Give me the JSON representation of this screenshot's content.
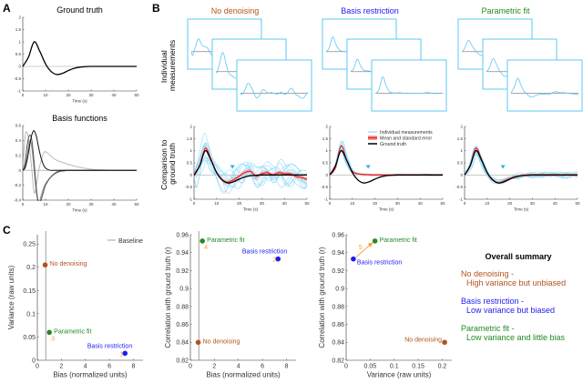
{
  "panel_labels": [
    "A",
    "B",
    "C"
  ],
  "row_labels": {
    "individual": [
      "Individual",
      "measurements"
    ],
    "comparison": [
      "Comparison to",
      "ground truth"
    ]
  },
  "colors": {
    "no_denoising": "#b4531e",
    "basis_restriction": "#1c1cf0",
    "parametric_fit": "#238a23",
    "order": "#f5a236",
    "measurement": "#5cc8f5",
    "mean": "#ee1c1c",
    "ground_truth": "#000000",
    "baseline": "#888888"
  },
  "legend": [
    "Individual measurements",
    "Mean and standard error",
    "Ground truth"
  ],
  "chart_data": [
    {
      "type": "line",
      "title": "Ground truth",
      "xlabel": "Time (s)",
      "ylabel": "",
      "xlim": [
        0,
        50
      ],
      "ylim": [
        -1,
        2
      ],
      "xticks": [
        0,
        10,
        20,
        30,
        40,
        50
      ],
      "yticks": [
        -1,
        -0.5,
        0,
        0.5,
        1,
        1.5,
        2
      ],
      "x": [
        0,
        2.5,
        5,
        7.5,
        10,
        12.5,
        15,
        17.5,
        20,
        22.5,
        25,
        27.5,
        30,
        32.5,
        35,
        37.5,
        40,
        42.5,
        45,
        47.5,
        50
      ],
      "series": [
        {
          "values": [
            0,
            0.38,
            1,
            0.61,
            0.1,
            -0.21,
            -0.33,
            -0.28,
            -0.17,
            -0.08,
            -0.03,
            -0.01,
            0,
            0,
            0,
            0,
            0,
            0,
            0,
            0,
            0
          ]
        }
      ]
    },
    {
      "type": "line",
      "title": "Basis functions",
      "xlabel": "Time (s)",
      "ylabel": "",
      "xlim": [
        0,
        50
      ],
      "ylim": [
        -0.4,
        0.6
      ],
      "xticks": [
        0,
        10,
        20,
        30,
        40,
        50
      ],
      "yticks": [
        -0.4,
        -0.2,
        0,
        0.2,
        0.4,
        0.6
      ],
      "x": [
        0,
        1,
        2,
        3,
        4,
        5,
        6,
        7,
        8,
        9,
        10,
        12,
        14,
        16,
        18,
        20,
        25,
        30,
        35,
        40,
        45,
        50
      ],
      "series": [
        {
          "color": "#bbbbbb",
          "values": [
            0,
            0.45,
            0.5,
            0.3,
            0,
            -0.3,
            -0.2,
            0,
            0.12,
            0.22,
            0.25,
            0.2,
            0.15,
            0.12,
            0.1,
            0.08,
            0.04,
            0.015,
            0.005,
            0,
            0,
            0
          ]
        },
        {
          "color": "#888888",
          "values": [
            0,
            0.05,
            0.2,
            0.4,
            0.3,
            0,
            -0.3,
            -0.45,
            -0.35,
            -0.25,
            -0.18,
            -0.1,
            -0.05,
            -0.02,
            -0.01,
            0,
            0,
            0,
            0,
            0,
            0,
            0
          ]
        },
        {
          "color": "#555555",
          "values": [
            0,
            0.1,
            0.35,
            0.47,
            0.4,
            0.1,
            -0.25,
            -0.45,
            -0.4,
            -0.3,
            -0.2,
            -0.1,
            -0.04,
            -0.01,
            0,
            0,
            0,
            0,
            0,
            0,
            0,
            0
          ]
        },
        {
          "color": "#111111",
          "values": [
            0,
            0.03,
            0.15,
            0.33,
            0.48,
            0.53,
            0.45,
            0.3,
            0.17,
            0.08,
            0.03,
            0,
            0,
            0,
            0,
            0,
            0,
            0,
            0,
            0,
            0,
            0
          ]
        }
      ]
    },
    {
      "type": "line",
      "title": "No denoising",
      "xlabel": "Time (s)",
      "ylabel": "Comparison to ground truth",
      "xlim": [
        0,
        50
      ],
      "ylim": [
        -1,
        2
      ],
      "xticks": [
        0,
        10,
        20,
        30,
        40,
        50
      ],
      "yticks": [
        -1,
        -0.5,
        0,
        0.5,
        1,
        1.5,
        2
      ],
      "x": [
        0,
        2.5,
        5,
        7.5,
        10,
        12.5,
        15,
        17.5,
        20,
        22.5,
        25,
        27.5,
        30,
        32.5,
        35,
        37.5,
        40,
        42.5,
        45,
        47.5,
        50
      ],
      "series": [
        {
          "name": "Mean and standard error",
          "values": [
            -0.05,
            0.4,
            1.1,
            0.65,
            0.1,
            -0.2,
            -0.3,
            -0.2,
            -0.05,
            0.1,
            0.15,
            -0.05,
            0.05,
            0.1,
            0.0,
            0.1,
            0.05,
            0.05,
            -0.05,
            -0.1,
            -0.18
          ]
        },
        {
          "name": "Ground truth",
          "values": [
            0,
            0.38,
            1,
            0.61,
            0.1,
            -0.21,
            -0.33,
            -0.28,
            -0.17,
            -0.08,
            -0.03,
            -0.01,
            0,
            0,
            0,
            0,
            0,
            0,
            0,
            0,
            0
          ]
        }
      ]
    },
    {
      "type": "line",
      "title": "Basis restriction",
      "xlabel": "Time (s)",
      "ylabel": "",
      "xlim": [
        0,
        50
      ],
      "ylim": [
        -1,
        2
      ],
      "xticks": [
        0,
        10,
        20,
        30,
        40,
        50
      ],
      "yticks": [
        -1,
        -0.5,
        0,
        0.5,
        1,
        1.5,
        2
      ],
      "x": [
        0,
        2.5,
        5,
        7.5,
        10,
        12.5,
        15,
        17.5,
        20,
        22.5,
        25,
        27.5,
        30,
        32.5,
        35,
        37.5,
        40,
        42.5,
        45,
        47.5,
        50
      ],
      "series": [
        {
          "name": "Mean and standard error",
          "values": [
            0,
            0.3,
            1.2,
            0.6,
            0.15,
            0.05,
            0.02,
            0.01,
            0,
            0,
            0,
            0,
            0,
            0,
            0,
            0,
            0,
            0,
            0,
            0,
            0
          ]
        },
        {
          "name": "Ground truth",
          "values": [
            0,
            0.38,
            1,
            0.61,
            0.1,
            -0.21,
            -0.33,
            -0.28,
            -0.17,
            -0.08,
            -0.03,
            -0.01,
            0,
            0,
            0,
            0,
            0,
            0,
            0,
            0,
            0
          ]
        }
      ]
    },
    {
      "type": "line",
      "title": "Parametric fit",
      "xlabel": "Time (s)",
      "ylabel": "",
      "xlim": [
        0,
        50
      ],
      "ylim": [
        -1,
        2
      ],
      "xticks": [
        0,
        10,
        20,
        30,
        40,
        50
      ],
      "yticks": [
        -1,
        -0.5,
        0,
        0.5,
        1,
        1.5,
        2
      ],
      "x": [
        0,
        2.5,
        5,
        7.5,
        10,
        12.5,
        15,
        17.5,
        20,
        22.5,
        25,
        27.5,
        30,
        32.5,
        35,
        37.5,
        40,
        42.5,
        45,
        47.5,
        50
      ],
      "series": [
        {
          "name": "Mean and standard error",
          "values": [
            0,
            0.4,
            1.1,
            0.65,
            0.1,
            -0.2,
            -0.32,
            -0.25,
            -0.15,
            -0.07,
            -0.03,
            -0.01,
            0,
            0,
            0,
            0,
            0,
            0,
            0,
            0,
            0
          ]
        },
        {
          "name": "Ground truth",
          "values": [
            0,
            0.38,
            1,
            0.61,
            0.1,
            -0.21,
            -0.33,
            -0.28,
            -0.17,
            -0.08,
            -0.03,
            -0.01,
            0,
            0,
            0,
            0,
            0,
            0,
            0,
            0,
            0
          ]
        }
      ]
    },
    {
      "type": "scatter",
      "xlabel": "Bias (normalized units)",
      "ylabel": "Variance (raw units)",
      "xlim": [
        0,
        8.8
      ],
      "ylim": [
        0,
        0.27
      ],
      "xticks": [
        0,
        2,
        4,
        6,
        8
      ],
      "yticks": [
        0,
        0.05,
        0.1,
        0.15,
        0.2,
        0.25
      ],
      "baseline": {
        "label": "Baseline",
        "x": 0.7
      },
      "points": [
        {
          "label": "No denoising",
          "key": "no_denoising",
          "x": 0.65,
          "y": 0.205
        },
        {
          "label": "Parametric fit",
          "key": "parametric_fit",
          "x": 1.0,
          "y": 0.06,
          "order": "3"
        },
        {
          "label": "Basis restriction",
          "key": "basis_restriction",
          "x": 7.3,
          "y": 0.015,
          "order": "1"
        }
      ]
    },
    {
      "type": "scatter",
      "xlabel": "Bias (normalized units)",
      "ylabel": "Correlation with ground truth (r)",
      "xlim": [
        0,
        8.8
      ],
      "ylim": [
        0.82,
        0.96
      ],
      "xticks": [
        0,
        2,
        4,
        6,
        8
      ],
      "yticks": [
        0.82,
        0.84,
        0.86,
        0.88,
        0.9,
        0.92,
        0.94,
        0.96
      ],
      "baseline": {
        "x": 0.7
      },
      "points": [
        {
          "label": "Parametric fit",
          "key": "parametric_fit",
          "x": 1.0,
          "y": 0.953,
          "order": "4"
        },
        {
          "label": "Basis restriction",
          "key": "basis_restriction",
          "x": 7.3,
          "y": 0.933,
          "order": "2"
        },
        {
          "label": "No denoising",
          "key": "no_denoising",
          "x": 0.65,
          "y": 0.84
        }
      ]
    },
    {
      "type": "scatter",
      "xlabel": "Variance (raw units)",
      "ylabel": "Correlation with ground truth (r)",
      "xlim": [
        0,
        0.22
      ],
      "ylim": [
        0.82,
        0.96
      ],
      "xticks": [
        0,
        0.05,
        0.1,
        0.15,
        0.2
      ],
      "yticks": [
        0.82,
        0.84,
        0.86,
        0.88,
        0.9,
        0.92,
        0.94,
        0.96
      ],
      "arrow": {
        "label": "5",
        "from": "Basis restriction",
        "to": "Parametric fit"
      },
      "points": [
        {
          "label": "Basis restriction",
          "key": "basis_restriction",
          "x": 0.015,
          "y": 0.933
        },
        {
          "label": "Parametric fit",
          "key": "parametric_fit",
          "x": 0.06,
          "y": 0.953
        },
        {
          "label": "No denoising",
          "key": "no_denoising",
          "x": 0.205,
          "y": 0.84
        }
      ]
    }
  ],
  "summary": {
    "title": "Overall summary",
    "items": [
      {
        "key": "no_denoising",
        "head": "No denoising -",
        "detail": "High variance but unbiased"
      },
      {
        "key": "basis_restriction",
        "head": "Basis restriction -",
        "detail": "Low variance but biased"
      },
      {
        "key": "parametric_fit",
        "head": "Parametric fit -",
        "detail": "Low variance and little bias"
      }
    ]
  }
}
